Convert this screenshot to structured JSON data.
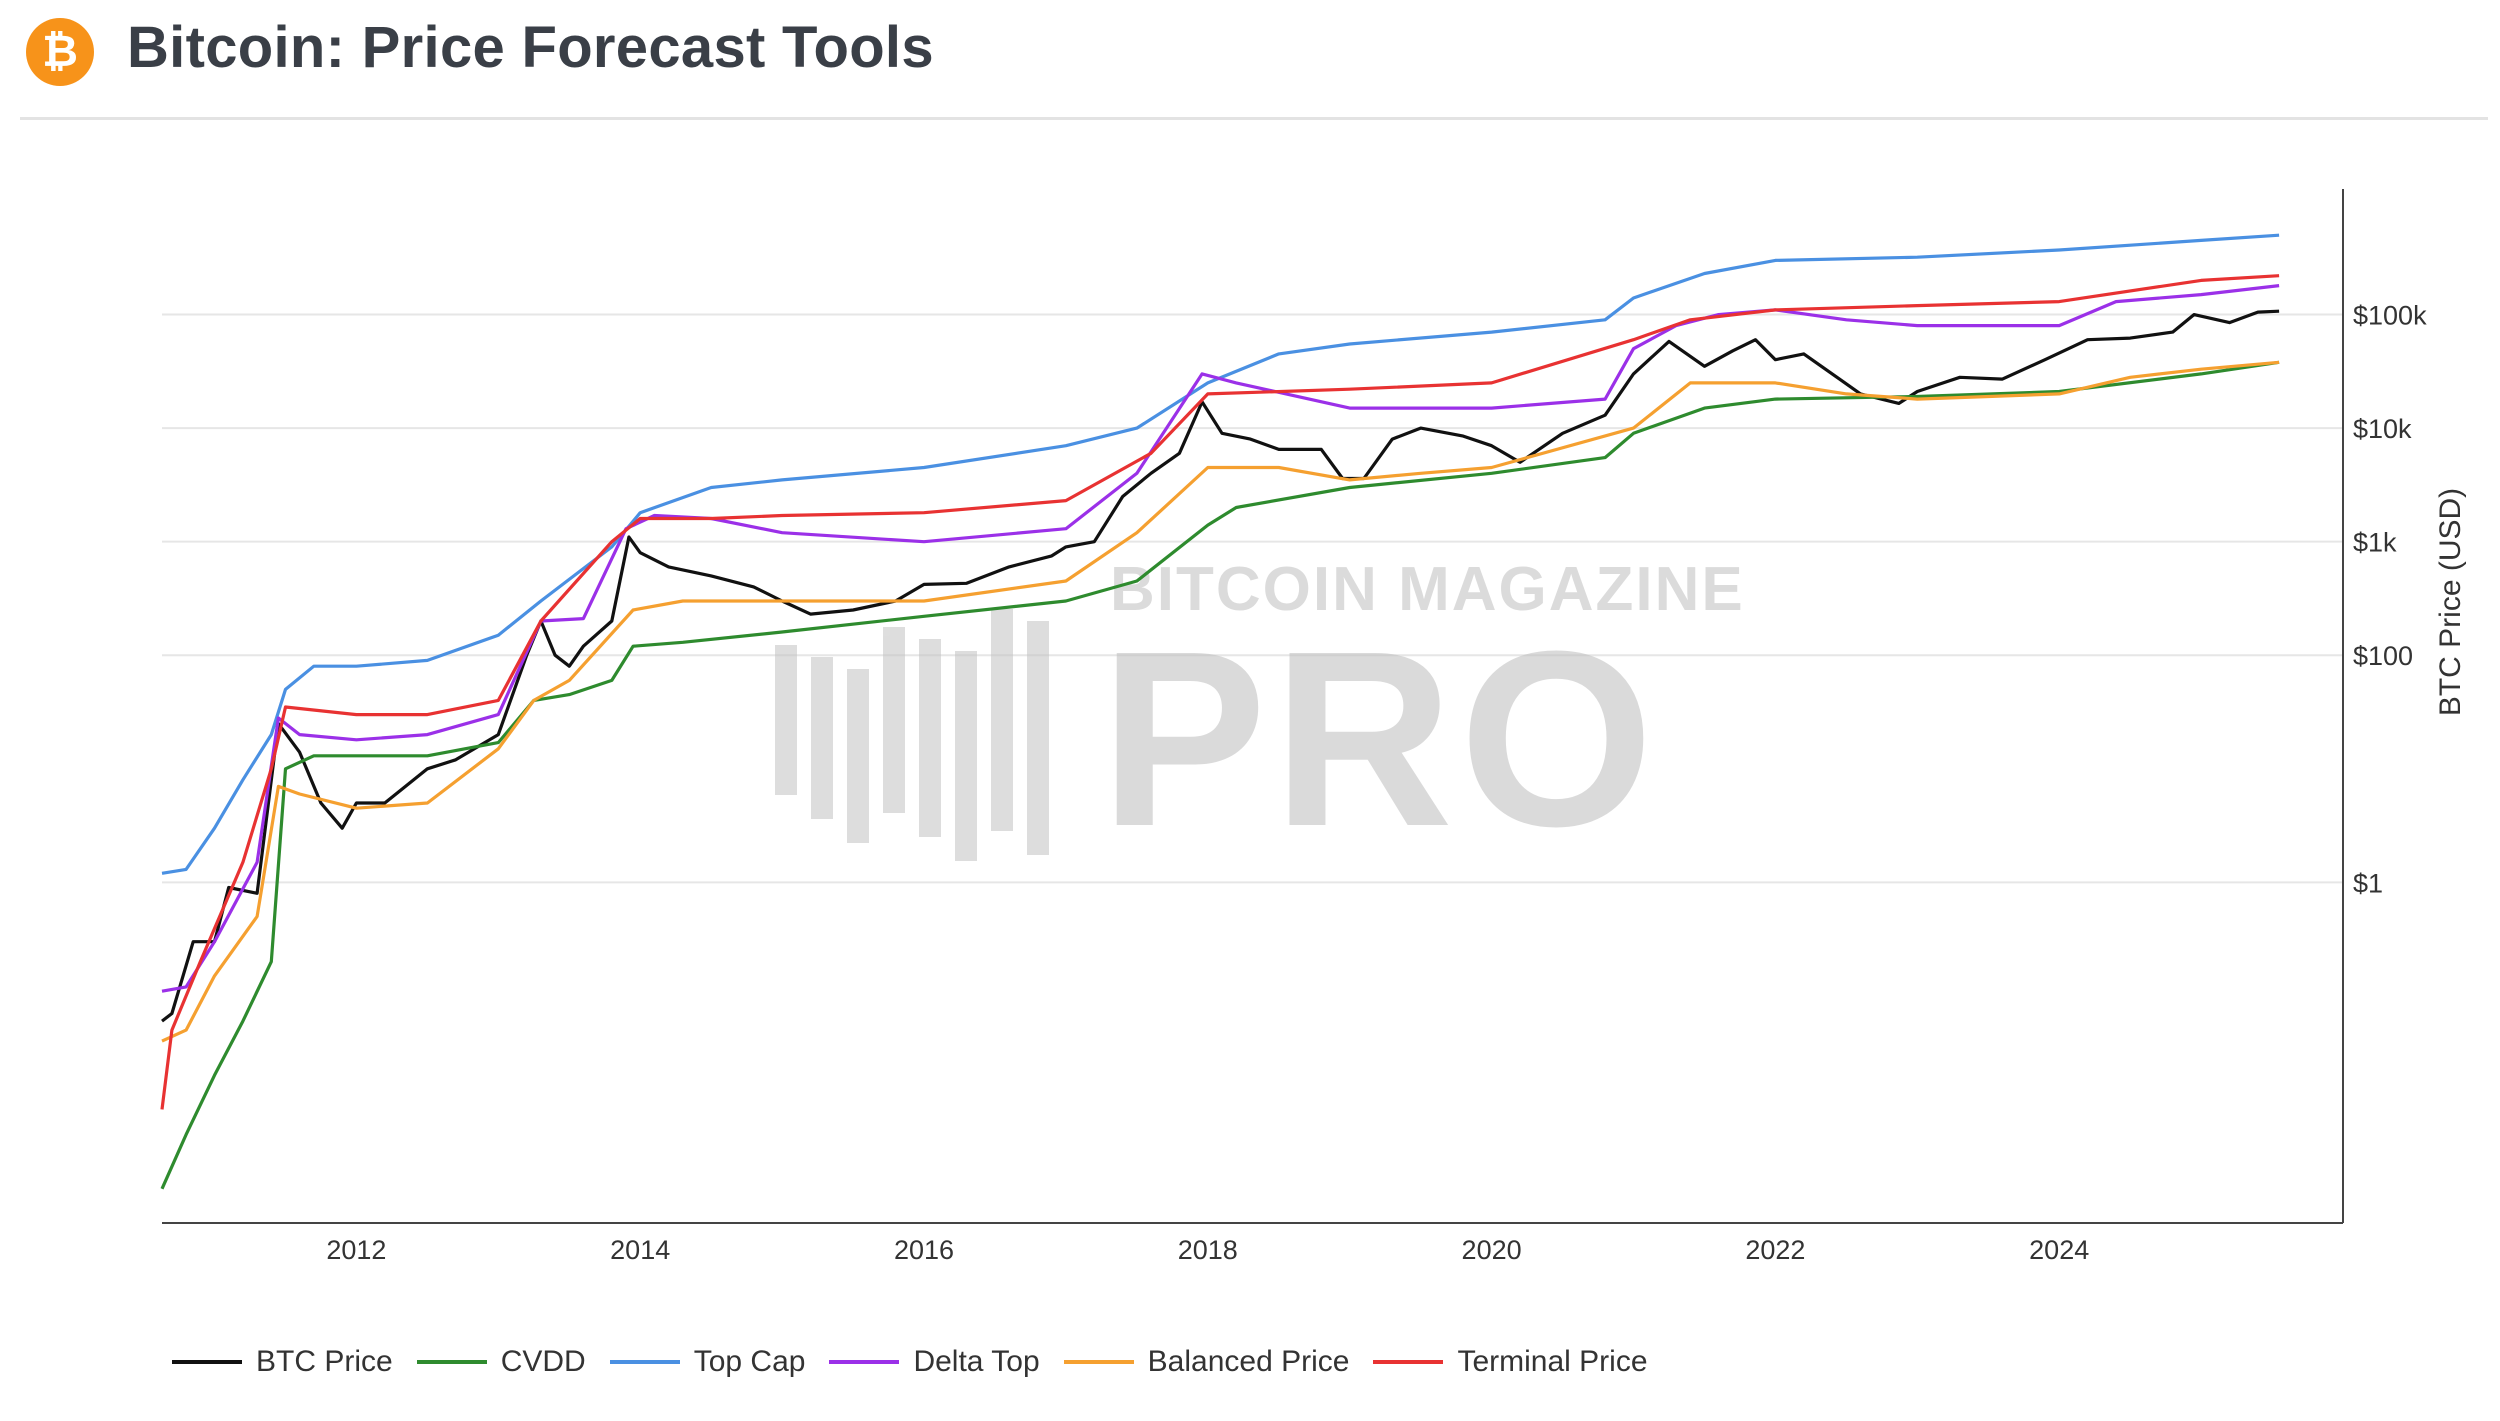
{
  "header": {
    "logo_glyph": "₿",
    "title": "Bitcoin: Price Forecast Tools"
  },
  "chart_data": {
    "type": "line",
    "title": "Bitcoin: Price Forecast Tools",
    "xlabel": "",
    "ylabel": "BTC Price (USD)",
    "y_scale": "log",
    "ylim": [
      0.001,
      1000000
    ],
    "xlim": [
      2010.63,
      2026.0
    ],
    "y_axis_side": "right",
    "x_ticks": [
      2012,
      2014,
      2016,
      2018,
      2020,
      2022,
      2024
    ],
    "x_tick_labels": [
      "2012",
      "2014",
      "2016",
      "2018",
      "2020",
      "2022",
      "2024"
    ],
    "y_ticks": [
      1,
      100,
      1000,
      10000,
      100000
    ],
    "y_tick_labels": [
      "$1",
      "$100",
      "$1k",
      "$10k",
      "$100k"
    ],
    "watermark": "BITCOIN MAGAZINE PRO",
    "legend_position": "bottom",
    "series": [
      {
        "name": "BTC Price",
        "color": "#111111",
        "x": [
          2010.63,
          2010.7,
          2010.85,
          2011.0,
          2011.1,
          2011.3,
          2011.45,
          2011.6,
          2011.75,
          2011.9,
          2012.0,
          2012.2,
          2012.5,
          2012.7,
          2013.0,
          2013.2,
          2013.3,
          2013.4,
          2013.5,
          2013.6,
          2013.8,
          2013.92,
          2014.0,
          2014.2,
          2014.5,
          2014.8,
          2015.0,
          2015.2,
          2015.5,
          2015.8,
          2016.0,
          2016.3,
          2016.6,
          2016.9,
          2017.0,
          2017.2,
          2017.4,
          2017.6,
          2017.8,
          2017.96,
          2018.1,
          2018.3,
          2018.5,
          2018.8,
          2018.95,
          2019.1,
          2019.3,
          2019.5,
          2019.8,
          2020.0,
          2020.2,
          2020.5,
          2020.8,
          2021.0,
          2021.25,
          2021.5,
          2021.7,
          2021.86,
          2022.0,
          2022.2,
          2022.4,
          2022.6,
          2022.87,
          2023.0,
          2023.3,
          2023.6,
          2023.9,
          2024.2,
          2024.5,
          2024.8,
          2024.95,
          2025.2,
          2025.4,
          2025.55
        ],
        "y": [
          0.06,
          0.07,
          0.3,
          0.3,
          0.9,
          0.8,
          25,
          14,
          5,
          3,
          5,
          5,
          10,
          12,
          20,
          100,
          200,
          100,
          80,
          120,
          200,
          1100,
          800,
          600,
          500,
          400,
          300,
          230,
          250,
          300,
          420,
          430,
          600,
          750,
          900,
          1000,
          2500,
          4000,
          6000,
          17000,
          9000,
          8000,
          6500,
          6500,
          3600,
          3600,
          8000,
          10000,
          8500,
          7000,
          5000,
          9000,
          13000,
          30000,
          58000,
          35000,
          48000,
          60000,
          40000,
          45000,
          30000,
          20000,
          16500,
          21000,
          28000,
          27000,
          40000,
          60000,
          62000,
          70000,
          100000,
          85000,
          105000,
          107000
        ]
      },
      {
        "name": "CVDD",
        "color": "#2e8b2e",
        "x": [
          2010.63,
          2010.8,
          2011.0,
          2011.2,
          2011.4,
          2011.5,
          2011.7,
          2012.5,
          2013.0,
          2013.25,
          2013.5,
          2013.8,
          2013.95,
          2014.3,
          2015.0,
          2016.0,
          2017.0,
          2017.5,
          2018.0,
          2018.2,
          2019.0,
          2020.0,
          2020.8,
          2021.0,
          2021.5,
          2022.0,
          2023.0,
          2024.0,
          2025.0,
          2025.55
        ],
        "y": [
          0.002,
          0.006,
          0.02,
          0.06,
          0.2,
          10,
          13,
          13,
          17,
          40,
          45,
          60,
          120,
          130,
          160,
          220,
          300,
          450,
          1400,
          2000,
          3000,
          4000,
          5500,
          9000,
          15000,
          18000,
          19000,
          21000,
          30000,
          38000
        ]
      },
      {
        "name": "Top Cap",
        "color": "#4a90e2",
        "x": [
          2010.63,
          2010.8,
          2011.0,
          2011.2,
          2011.4,
          2011.5,
          2011.7,
          2012.0,
          2012.5,
          2013.0,
          2013.3,
          2013.8,
          2014.0,
          2014.5,
          2015.0,
          2016.0,
          2017.0,
          2017.5,
          2018.0,
          2018.5,
          2019.0,
          2020.0,
          2020.8,
          2021.0,
          2021.5,
          2022.0,
          2023.0,
          2024.0,
          2025.0,
          2025.55
        ],
        "y": [
          1.2,
          1.3,
          3,
          8,
          20,
          50,
          80,
          80,
          90,
          150,
          300,
          900,
          1800,
          3000,
          3500,
          4500,
          7000,
          10000,
          25000,
          45000,
          55000,
          70000,
          90000,
          140000,
          230000,
          300000,
          320000,
          370000,
          450000,
          500000
        ]
      },
      {
        "name": "Delta Top",
        "color": "#9b30e8",
        "x": [
          2010.63,
          2010.8,
          2011.0,
          2011.3,
          2011.45,
          2011.6,
          2012.0,
          2012.5,
          2013.0,
          2013.3,
          2013.6,
          2013.9,
          2014.1,
          2014.5,
          2015.0,
          2016.0,
          2017.0,
          2017.5,
          2017.96,
          2018.2,
          2019.0,
          2020.0,
          2020.8,
          2021.0,
          2021.3,
          2021.6,
          2022.0,
          2022.5,
          2023.0,
          2024.0,
          2024.4,
          2025.0,
          2025.55
        ],
        "y": [
          0.11,
          0.12,
          0.3,
          1.5,
          28,
          20,
          18,
          20,
          30,
          200,
          210,
          1300,
          1700,
          1600,
          1200,
          1000,
          1300,
          4000,
          30000,
          25000,
          15000,
          15000,
          18000,
          50000,
          80000,
          100000,
          110000,
          90000,
          80000,
          80000,
          130000,
          150000,
          180000
        ]
      },
      {
        "name": "Balanced Price",
        "color": "#f5a030",
        "x": [
          2010.63,
          2010.8,
          2011.0,
          2011.3,
          2011.45,
          2011.6,
          2012.0,
          2012.5,
          2013.0,
          2013.25,
          2013.5,
          2013.95,
          2014.3,
          2015.0,
          2016.0,
          2017.0,
          2017.5,
          2018.0,
          2018.5,
          2019.0,
          2019.5,
          2020.0,
          2021.0,
          2021.4,
          2022.0,
          2022.5,
          2023.0,
          2024.0,
          2024.5,
          2025.0,
          2025.55
        ],
        "y": [
          0.04,
          0.05,
          0.15,
          0.5,
          7,
          6,
          4.5,
          5,
          15,
          40,
          60,
          250,
          300,
          300,
          300,
          450,
          1200,
          4500,
          4500,
          3500,
          4000,
          4500,
          10000,
          25000,
          25000,
          20000,
          18000,
          20000,
          28000,
          33000,
          38000
        ]
      },
      {
        "name": "Terminal Price",
        "color": "#e83232",
        "x": [
          2010.63,
          2010.7,
          2010.9,
          2011.2,
          2011.4,
          2011.5,
          2012.0,
          2012.5,
          2013.0,
          2013.3,
          2013.8,
          2014.0,
          2014.5,
          2015.0,
          2016.0,
          2017.0,
          2017.6,
          2018.0,
          2019.0,
          2020.0,
          2021.0,
          2021.4,
          2022.0,
          2023.0,
          2024.0,
          2025.0,
          2025.55
        ],
        "y": [
          0.01,
          0.05,
          0.2,
          1.5,
          10,
          35,
          30,
          30,
          40,
          200,
          1000,
          1600,
          1600,
          1700,
          1800,
          2300,
          6000,
          20000,
          22000,
          25000,
          60000,
          90000,
          110000,
          120000,
          130000,
          200000,
          220000
        ]
      }
    ]
  }
}
